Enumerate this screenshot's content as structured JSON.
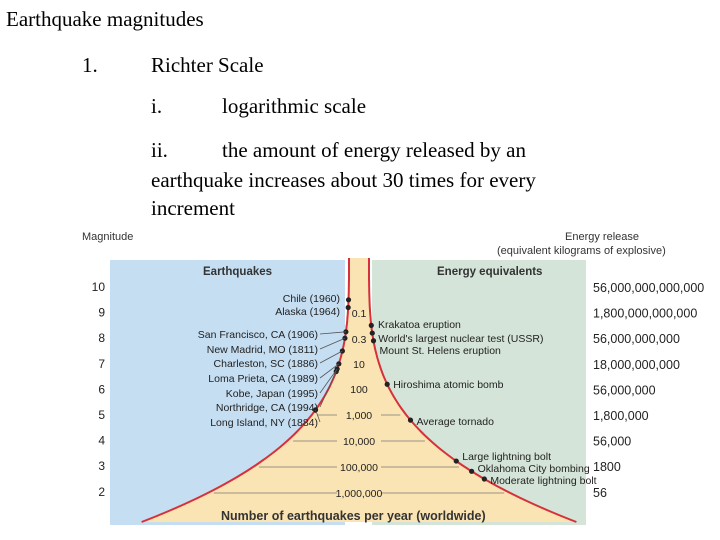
{
  "slide": {
    "title": "Earthquake magnitudes",
    "item_number": "1.",
    "item_title": "Richter Scale",
    "sub_i_marker": "i.",
    "sub_i_text": "logarithmic scale",
    "sub_ii_marker": "ii.",
    "sub_ii_line1": "the amount of energy released by an",
    "sub_ii_line2": "earthquake increases about 30 times for every",
    "sub_ii_line3": "increment"
  },
  "figure": {
    "magnitude_label": "Magnitude",
    "energy_release_label": "Energy release",
    "energy_release_sublabel": "(equivalent kilograms of explosive)",
    "left_panel_title": "Earthquakes",
    "right_panel_title": "Energy equivalents",
    "bottom_caption": "Number of earthquakes per year (worldwide)",
    "magnitudes": [
      "10",
      "9",
      "8",
      "7",
      "6",
      "5",
      "4",
      "3",
      "2"
    ],
    "energies": [
      "56,000,000,000,000",
      "1,800,000,000,000",
      "56,000,000,000",
      "18,000,000,000",
      "56,000,000",
      "1,800,000",
      "56,000",
      "1800",
      "56"
    ],
    "counts": [
      "0.1",
      "0.3",
      "10",
      "100",
      "1,000",
      "10,000",
      "100,000",
      "1,000,000"
    ],
    "earthquakes": [
      "Chile (1960)",
      "Alaska (1964)",
      "San Francisco, CA (1906)",
      "New Madrid, MO (1811)",
      "Charleston, SC (1886)",
      "Loma Prieta, CA (1989)",
      "Kobe, Japan (1995)",
      "Northridge, CA (1994)",
      "Long Island, NY (1884)"
    ],
    "equivalents": [
      "Krakatoa eruption",
      "World's largest nuclear test (USSR)",
      "Mount St. Helens eruption",
      "Hiroshima atomic bomb",
      "Average tornado",
      "Large lightning bolt",
      "Oklahoma City bombing",
      "Moderate lightning bolt"
    ],
    "colors": {
      "left_bg": "#c5def2",
      "right_bg": "#d4e4d8",
      "funnel": "#fbe4b3",
      "curve": "#d6313a"
    }
  }
}
